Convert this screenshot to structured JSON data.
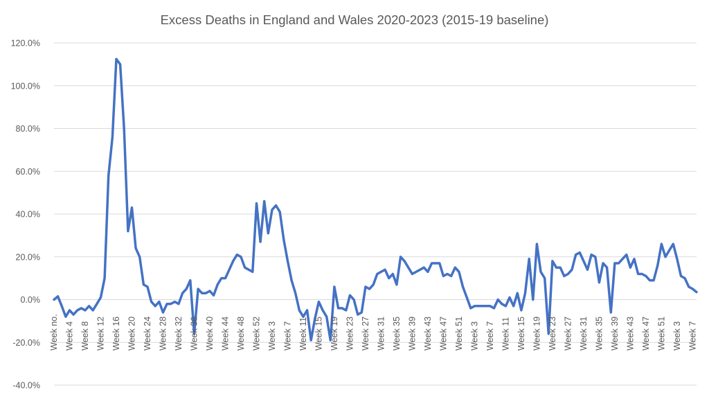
{
  "chart_data": {
    "type": "line",
    "title": "Excess Deaths in England and Wales 2020-2023 (2015-19 baseline)",
    "xlabel": "",
    "ylabel": "",
    "ylim": [
      -40,
      120
    ],
    "yticks": [
      "120.0%",
      "100.0%",
      "80.0%",
      "60.0%",
      "40.0%",
      "20.0%",
      "0.0%",
      "-20.0%",
      "-40.0%"
    ],
    "ytick_values": [
      120,
      100,
      80,
      60,
      40,
      20,
      0,
      -20,
      -40
    ],
    "grid": true,
    "legend": "none",
    "series_color": "#4472C4",
    "x_tick_labels": [
      {
        "index": 0,
        "label": "Week no."
      },
      {
        "index": 4,
        "label": "Week 4"
      },
      {
        "index": 8,
        "label": "Week 8"
      },
      {
        "index": 12,
        "label": "Week 12"
      },
      {
        "index": 16,
        "label": "Week 16"
      },
      {
        "index": 20,
        "label": "Week 20"
      },
      {
        "index": 24,
        "label": "Week 24"
      },
      {
        "index": 28,
        "label": "Week 28"
      },
      {
        "index": 32,
        "label": "Week 32"
      },
      {
        "index": 36,
        "label": "Week 36"
      },
      {
        "index": 40,
        "label": "Week 40"
      },
      {
        "index": 44,
        "label": "Week 44"
      },
      {
        "index": 48,
        "label": "Week 48"
      },
      {
        "index": 52,
        "label": "Week 52"
      },
      {
        "index": 56,
        "label": "Week 3"
      },
      {
        "index": 60,
        "label": "Week 7"
      },
      {
        "index": 64,
        "label": "Week 11"
      },
      {
        "index": 68,
        "label": "Week 15"
      },
      {
        "index": 72,
        "label": "Week 19"
      },
      {
        "index": 76,
        "label": "Week 23"
      },
      {
        "index": 80,
        "label": "Week 27"
      },
      {
        "index": 84,
        "label": "Week 31"
      },
      {
        "index": 88,
        "label": "Week 35"
      },
      {
        "index": 92,
        "label": "Week 39"
      },
      {
        "index": 96,
        "label": "Week 43"
      },
      {
        "index": 100,
        "label": "Week 47"
      },
      {
        "index": 104,
        "label": "Week 51"
      },
      {
        "index": 108,
        "label": "Week 3"
      },
      {
        "index": 112,
        "label": "Week 7"
      },
      {
        "index": 116,
        "label": "Week 11"
      },
      {
        "index": 120,
        "label": "Week 15"
      },
      {
        "index": 124,
        "label": "Week 19"
      },
      {
        "index": 128,
        "label": "Week 23"
      },
      {
        "index": 132,
        "label": "Week 27"
      },
      {
        "index": 136,
        "label": "Week 31"
      },
      {
        "index": 140,
        "label": "Week 35"
      },
      {
        "index": 144,
        "label": "Week 39"
      },
      {
        "index": 148,
        "label": "Week 43"
      },
      {
        "index": 152,
        "label": "Week 47"
      },
      {
        "index": 156,
        "label": "Week 51"
      },
      {
        "index": 160,
        "label": "Week 3"
      },
      {
        "index": 164,
        "label": "Week 7"
      }
    ],
    "series": [
      {
        "values": [
          0.0,
          1.5,
          -3,
          -8,
          -5,
          -7,
          -5,
          -4,
          -5,
          -3,
          -5,
          -2,
          1,
          10,
          58,
          76,
          112.5,
          110,
          80,
          32,
          43,
          24,
          20,
          7,
          6,
          -1,
          -3,
          -1,
          -6,
          -2,
          -2,
          -1,
          -2,
          3,
          5,
          9,
          -16,
          5,
          3,
          3,
          4,
          2,
          7,
          10,
          10,
          14,
          18,
          21,
          20,
          15,
          14,
          13,
          45,
          27,
          46,
          31,
          42,
          44,
          41,
          28,
          18,
          9,
          3,
          -5,
          -8,
          -5,
          -19,
          -9,
          -1,
          -5,
          -8,
          -19,
          6,
          -4,
          -4,
          -5,
          2,
          0,
          -7,
          -6,
          6,
          5,
          7,
          12,
          13,
          14,
          10,
          12,
          7,
          20,
          18,
          15,
          12,
          13,
          14,
          15,
          13,
          17,
          17,
          17,
          11,
          12,
          11,
          15,
          13,
          6,
          1,
          -4,
          -3,
          -3,
          -3,
          -3,
          -3,
          -4,
          0,
          -2,
          -3,
          1,
          -3,
          3,
          -5,
          3,
          19,
          0,
          26,
          13,
          10,
          -16,
          18,
          15,
          15,
          11,
          12,
          14,
          21,
          22,
          18,
          14,
          21,
          20,
          8,
          17,
          15,
          -6,
          17,
          17,
          19,
          21,
          15,
          19,
          12,
          12,
          11,
          9,
          9,
          16,
          26,
          20,
          23,
          26,
          19,
          11,
          10,
          6,
          5,
          3.5
        ]
      }
    ]
  }
}
